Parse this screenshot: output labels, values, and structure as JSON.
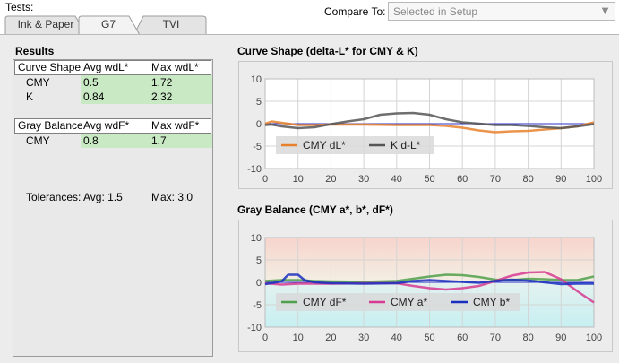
{
  "header": {
    "tests_label": "Tests:",
    "compare_label": "Compare To:",
    "compare_value": "Selected in Setup",
    "compare_arrow": "▼"
  },
  "tabs": [
    {
      "label": "Ink & Paper",
      "active": false
    },
    {
      "label": "G7",
      "active": true
    },
    {
      "label": "TVI",
      "active": false
    }
  ],
  "results": {
    "title": "Results",
    "curve_shape": {
      "headers": [
        "Curve Shape",
        "Avg wdL*",
        "Max wdL*"
      ],
      "rows": [
        {
          "label": "CMY",
          "avg": "0.5",
          "max": "1.72"
        },
        {
          "label": "K",
          "avg": "0.84",
          "max": "2.32"
        }
      ]
    },
    "gray_balance": {
      "headers": [
        "Gray Balance",
        "Avg wdF*",
        "Max wdF*"
      ],
      "rows": [
        {
          "label": "CMY",
          "avg": "0.8",
          "max": "1.7"
        }
      ]
    },
    "tolerances": {
      "label": "Tolerances:",
      "avg": "Avg: 1.5",
      "max": "Max: 3.0"
    }
  },
  "colors": {
    "highlight_green": "#c9e8c4",
    "orange": "#e8812d",
    "dark_gray": "#555555",
    "green": "#4fa04a",
    "magenta": "#d63a92",
    "blue": "#1a2fbf"
  },
  "chart_data": [
    {
      "type": "line",
      "title": "Curve Shape (delta-L* for CMY & K)",
      "xlabel": "",
      "ylabel": "",
      "xlim": [
        0,
        100
      ],
      "ylim": [
        -10,
        10
      ],
      "xticks": [
        0,
        10,
        20,
        30,
        40,
        50,
        60,
        70,
        80,
        90,
        100
      ],
      "yticks": [
        10,
        5,
        0,
        -5,
        -10
      ],
      "grid": true,
      "legend": "bottom-left",
      "series": [
        {
          "name": "CMY dL*",
          "color": "#e8812d",
          "x": [
            0,
            2,
            5,
            10,
            15,
            20,
            30,
            40,
            50,
            55,
            60,
            65,
            70,
            75,
            80,
            85,
            90,
            95,
            100
          ],
          "y": [
            0,
            0.5,
            0.2,
            -0.3,
            -0.3,
            -0.2,
            -0.2,
            -0.3,
            -0.3,
            -0.5,
            -0.9,
            -1.5,
            -1.9,
            -1.7,
            -1.6,
            -1.3,
            -1.0,
            -0.6,
            0.3
          ]
        },
        {
          "name": "K d-L*",
          "color": "#555555",
          "x": [
            0,
            2,
            5,
            10,
            15,
            20,
            25,
            30,
            35,
            40,
            45,
            50,
            55,
            60,
            65,
            70,
            75,
            80,
            85,
            90,
            95,
            100
          ],
          "y": [
            -0.3,
            -0.2,
            -0.6,
            -1.0,
            -0.8,
            -0.1,
            0.5,
            1.0,
            2.0,
            2.3,
            2.4,
            2.0,
            1.0,
            0.3,
            0.0,
            -0.3,
            -0.3,
            -0.5,
            -0.8,
            -1.0,
            -0.6,
            -0.1
          ]
        }
      ]
    },
    {
      "type": "line",
      "title": "Gray Balance (CMY a*, b*, dF*)",
      "xlabel": "",
      "ylabel": "",
      "xlim": [
        0,
        100
      ],
      "ylim": [
        -10,
        10
      ],
      "xticks": [
        0,
        10,
        20,
        30,
        40,
        50,
        60,
        70,
        80,
        90,
        100
      ],
      "yticks": [
        10,
        5,
        0,
        -5,
        -10
      ],
      "grid": true,
      "legend": "bottom-left",
      "background_bands": true,
      "series": [
        {
          "name": "CMY dF*",
          "color": "#4fa04a",
          "x": [
            0,
            5,
            10,
            15,
            20,
            30,
            40,
            45,
            50,
            55,
            60,
            65,
            70,
            75,
            80,
            85,
            90,
            95,
            100
          ],
          "y": [
            0.3,
            0.5,
            0.5,
            0.3,
            0.2,
            0.1,
            0.3,
            0.8,
            1.3,
            1.7,
            1.6,
            1.2,
            0.6,
            0.5,
            0.8,
            0.7,
            0.5,
            0.5,
            1.3
          ]
        },
        {
          "name": "CMY a*",
          "color": "#d63a92",
          "x": [
            0,
            5,
            10,
            20,
            30,
            40,
            45,
            50,
            55,
            60,
            65,
            70,
            75,
            80,
            85,
            90,
            95,
            100
          ],
          "y": [
            -0.2,
            -0.5,
            -0.3,
            -0.3,
            -0.2,
            -0.2,
            -0.8,
            -1.3,
            -1.6,
            -1.3,
            -0.8,
            0.3,
            1.5,
            2.2,
            2.3,
            0.7,
            -2.0,
            -4.5
          ]
        },
        {
          "name": "CMY b*",
          "color": "#1a2fbf",
          "x": [
            0,
            5,
            7,
            10,
            12,
            15,
            20,
            30,
            40,
            45,
            50,
            55,
            60,
            65,
            70,
            75,
            80,
            85,
            90,
            95,
            100
          ],
          "y": [
            -0.4,
            0.2,
            1.7,
            1.7,
            0.5,
            0.0,
            -0.2,
            -0.3,
            -0.2,
            0.3,
            0.5,
            0.3,
            0.1,
            -0.1,
            0.3,
            0.6,
            0.4,
            0.0,
            -0.4,
            -0.3,
            -0.3
          ]
        }
      ]
    }
  ]
}
